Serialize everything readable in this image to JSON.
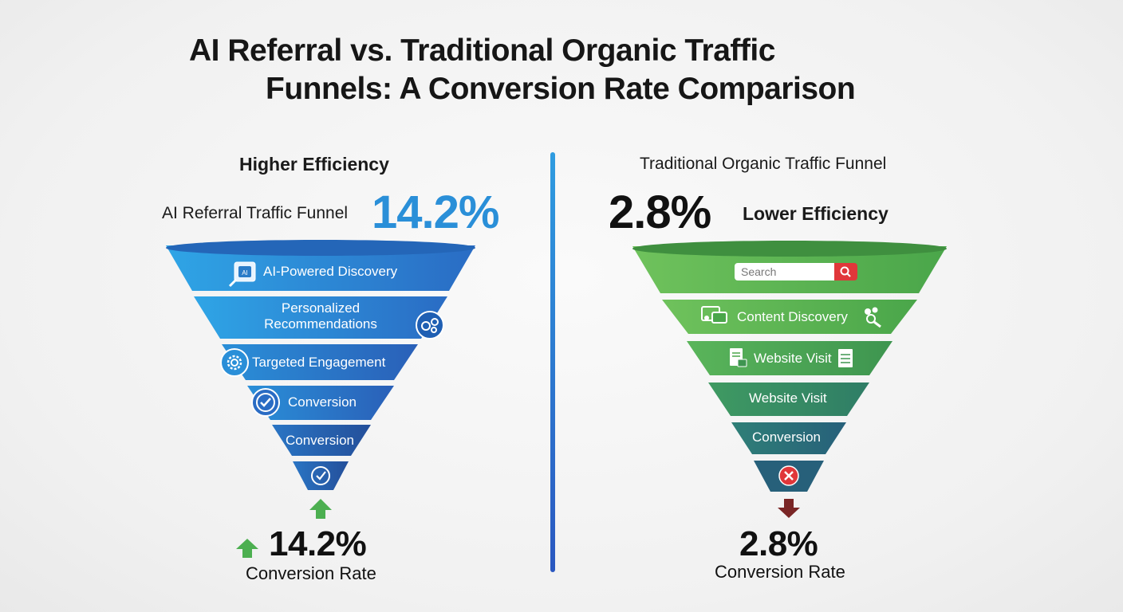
{
  "title": {
    "line1": "AI Referral vs. Traditional Organic Traffic",
    "line2": "Funnels: A Conversion Rate Comparison"
  },
  "left": {
    "tagline": "Higher Efficiency",
    "funnel_label": "AI Referral Traffic Funnel",
    "headline_rate": "14.2%",
    "stages": [
      {
        "label": "AI-Powered Discovery",
        "icon": "ai-chip-search-icon"
      },
      {
        "label_line1": "Personalized",
        "label_line2": "Recommendations",
        "icon": "gears-icon"
      },
      {
        "label": "Targeted Engagement",
        "icon": "gear-icon"
      },
      {
        "label": "Conversion",
        "icon": "checkmark-circle-icon"
      },
      {
        "label": "Conversion"
      },
      {
        "icon": "checkmark-circle-icon"
      }
    ],
    "result_rate": "14.2%",
    "result_caption": "Conversion Rate",
    "arrow_direction": "up",
    "color": "#2b8ed6"
  },
  "right": {
    "funnel_label": "Traditional Organic Traffic Funnel",
    "headline_rate": "2.8%",
    "tagline": "Lower Efficiency",
    "stages": [
      {
        "search_placeholder": "Search",
        "icon": "search-icon"
      },
      {
        "label": "Content Discovery",
        "icon": "browser-windows-icon",
        "icon2": "people-search-icon"
      },
      {
        "label": "Website Visit",
        "icon": "document-lock-icon",
        "icon2": "document-icon"
      },
      {
        "label": "Website Visit"
      },
      {
        "label": "Conversion"
      },
      {
        "icon": "x-circle-icon"
      }
    ],
    "result_rate": "2.8%",
    "result_caption": "Conversion Rate",
    "arrow_direction": "down",
    "color": "#5fb554"
  }
}
